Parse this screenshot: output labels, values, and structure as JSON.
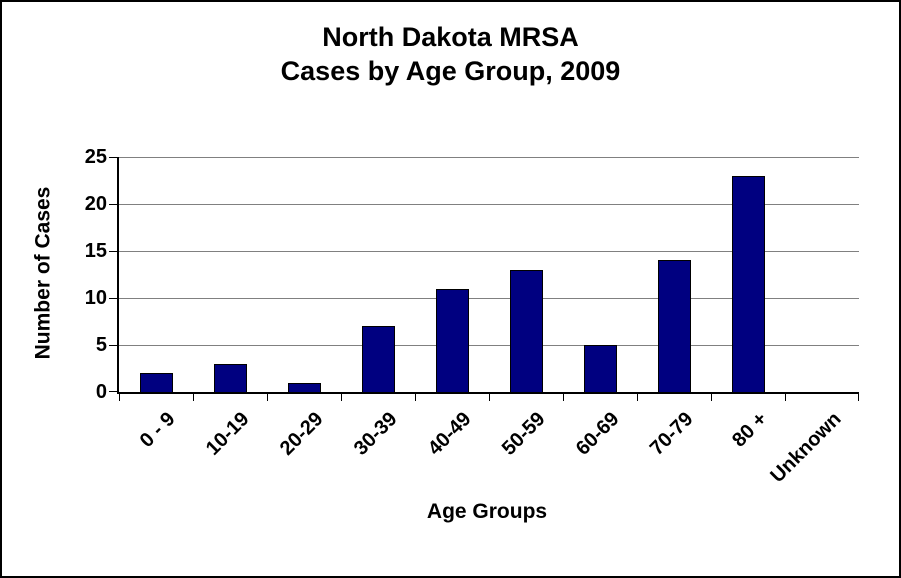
{
  "chart_data": {
    "type": "bar",
    "title_lines": [
      "North Dakota MRSA",
      "Cases by Age Group, 2009"
    ],
    "categories": [
      "0 - 9",
      "10-19",
      "20-29",
      "30-39",
      "40-49",
      "50-59",
      "60-69",
      "70-79",
      "80 +",
      "Unknown"
    ],
    "values": [
      2,
      3,
      1,
      7,
      11,
      13,
      5,
      14,
      23,
      0
    ],
    "xlabel": "Age Groups",
    "ylabel": "Number of Cases",
    "ylim": [
      0,
      25
    ],
    "yticks": [
      0,
      5,
      10,
      15,
      20,
      25
    ],
    "grid": true,
    "legend": false,
    "bar_color": "#000080",
    "bar_border_color": "#000000",
    "gridline_color": "#808080",
    "axis_color": "#000000",
    "background_color": "#FFFFFF"
  }
}
